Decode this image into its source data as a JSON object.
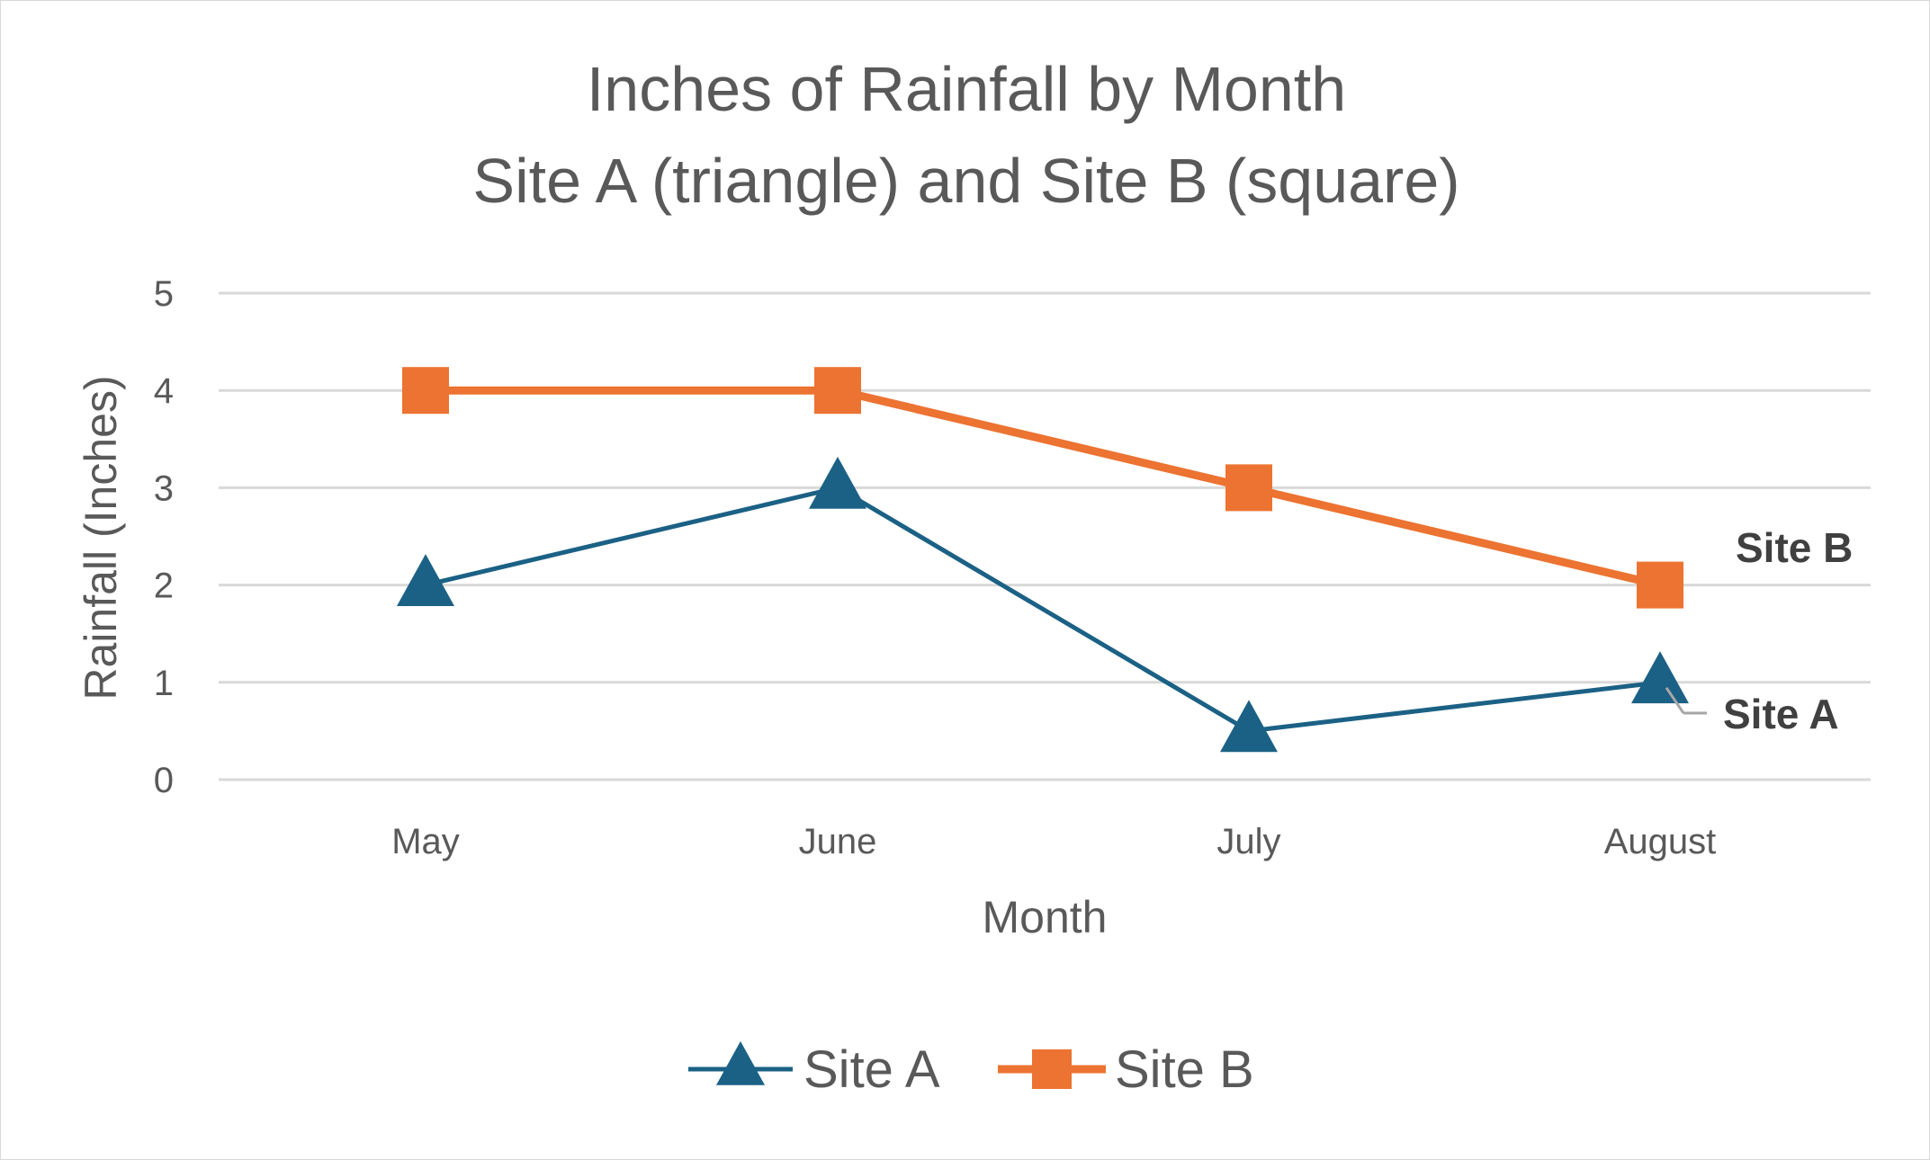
{
  "chart_data": {
    "type": "line",
    "title": [
      "Inches of Rainfall by Month",
      "Site A (triangle) and Site B (square)"
    ],
    "xlabel": "Month",
    "ylabel": "Rainfall (Inches)",
    "categories": [
      "May",
      "June",
      "July",
      "August"
    ],
    "ylim": [
      0,
      5
    ],
    "yticks": [
      0,
      1,
      2,
      3,
      4,
      5
    ],
    "grid": true,
    "legend_position": "bottom",
    "series": [
      {
        "name": "Site A",
        "values": [
          2,
          3,
          0.5,
          1
        ],
        "marker": "triangle",
        "color": "#1b6185",
        "end_label": "Site A"
      },
      {
        "name": "Site B",
        "values": [
          4,
          4,
          3,
          2
        ],
        "marker": "square",
        "color": "#ec7331",
        "end_label": "Site B"
      }
    ]
  }
}
